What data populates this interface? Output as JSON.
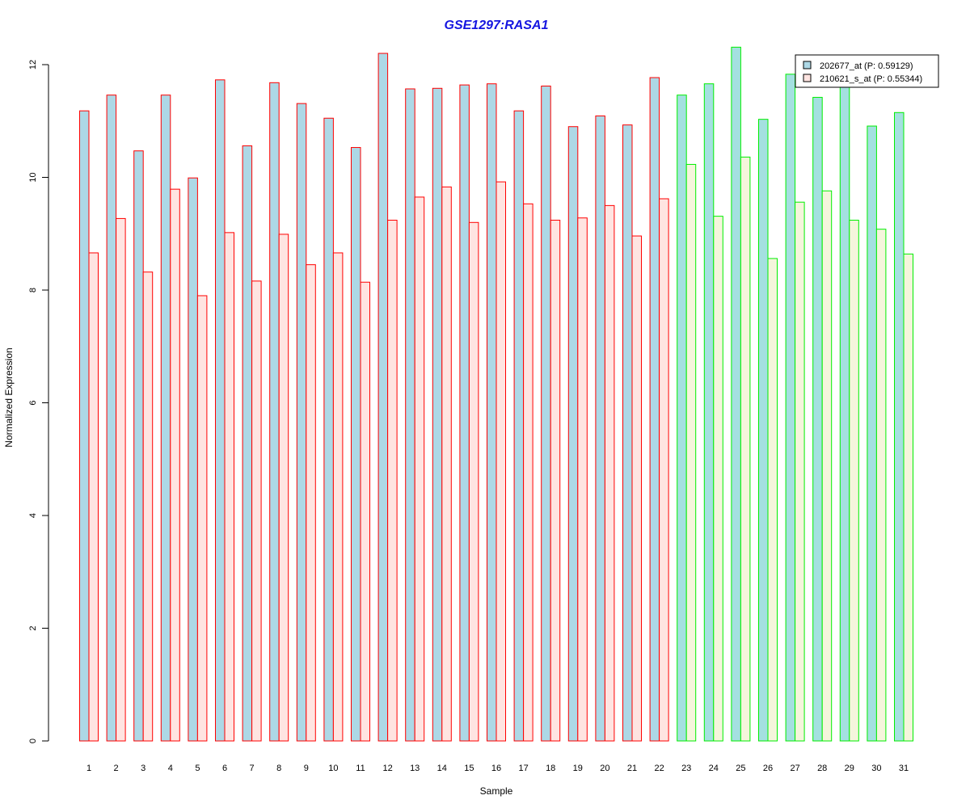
{
  "chart_data": {
    "type": "bar",
    "title": "GSE1297:RASA1",
    "xlabel": "Sample",
    "ylabel": "Normalized Expression",
    "ylim": [
      0,
      12.5
    ],
    "y_ticks": [
      "0",
      "2",
      "4",
      "6",
      "8",
      "10",
      "12"
    ],
    "categories": [
      "1",
      "2",
      "3",
      "4",
      "5",
      "6",
      "7",
      "8",
      "9",
      "10",
      "11",
      "12",
      "13",
      "14",
      "15",
      "16",
      "17",
      "18",
      "19",
      "20",
      "21",
      "22",
      "23",
      "24",
      "25",
      "26",
      "27",
      "28",
      "29",
      "30",
      "31"
    ],
    "series": [
      {
        "name": "202677_at (P: 0.59129)",
        "values": [
          11.18,
          11.46,
          10.47,
          11.46,
          9.99,
          11.73,
          10.56,
          11.68,
          11.31,
          11.05,
          10.53,
          12.2,
          11.57,
          11.58,
          11.64,
          11.66,
          11.18,
          11.62,
          10.9,
          11.09,
          10.93,
          11.77,
          11.46,
          11.66,
          12.31,
          11.03,
          11.83,
          11.42,
          11.62,
          10.91,
          11.15
        ]
      },
      {
        "name": "210621_s_at (P: 0.55344)",
        "values": [
          8.66,
          9.27,
          8.32,
          9.79,
          7.9,
          9.02,
          8.16,
          8.99,
          8.45,
          8.66,
          8.14,
          9.24,
          9.65,
          9.83,
          9.2,
          9.92,
          9.53,
          9.24,
          9.28,
          9.5,
          8.96,
          9.62,
          10.23,
          9.31,
          10.36,
          8.56,
          9.56,
          9.76,
          9.24,
          9.08,
          8.64
        ]
      }
    ],
    "group_split_after": 22,
    "legend_placement": "top-right",
    "grid": false,
    "colors": {
      "title": "#1515e0",
      "series1_fill": "#add8e6",
      "series2_fill_group1": "#ffe4e1",
      "series2_fill_group2": "#f5f5dc",
      "series1_fill_group2": "#a4e0e0",
      "border_group1": "#ff0000",
      "border_group2": "#00ee00",
      "axis": "#000000"
    }
  }
}
